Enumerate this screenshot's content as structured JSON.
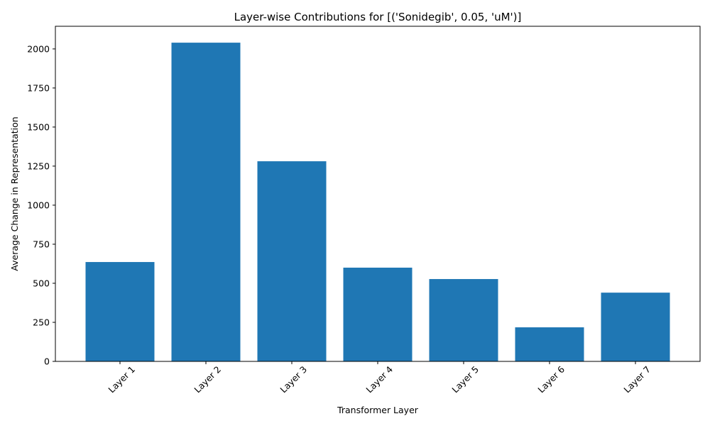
{
  "chart_data": {
    "type": "bar",
    "title": "Layer-wise Contributions for [('Sonidegib', 0.05, 'uM')]",
    "xlabel": "Transformer Layer",
    "ylabel": "Average Change in Representation",
    "categories": [
      "Layer 1",
      "Layer 2",
      "Layer 3",
      "Layer 4",
      "Layer 5",
      "Layer 6",
      "Layer 7"
    ],
    "values": [
      636,
      2040,
      1281,
      600,
      527,
      218,
      440
    ],
    "ylim": [
      0,
      2145
    ],
    "yticks": [
      0,
      250,
      500,
      750,
      1000,
      1250,
      1500,
      1750,
      2000
    ],
    "bar_color": "#1f77b4",
    "grid": false,
    "legend": "none"
  }
}
